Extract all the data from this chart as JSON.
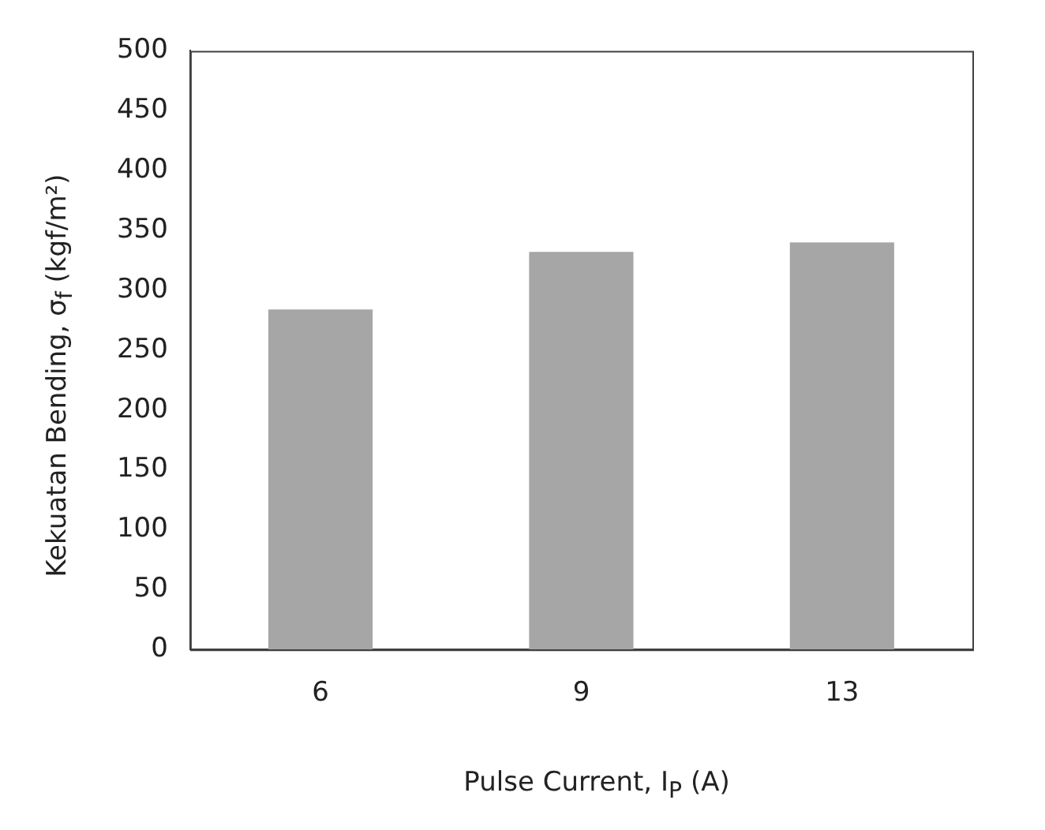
{
  "chart_data": {
    "type": "bar",
    "xlabel": "Pulse Current, I$_{P}$ (A)",
    "ylabel": "Kekuatan Bending, σ$_{f}$ (kgf/m²)",
    "categories": [
      "6",
      "9",
      "13"
    ],
    "series": [
      {
        "color": "#a6a6a6",
        "values": [
          284,
          332,
          340
        ]
      }
    ],
    "ylim": [
      0,
      500
    ],
    "yticks": [
      0,
      50,
      100,
      150,
      200,
      250,
      300,
      350,
      400,
      450,
      500
    ],
    "grid": false,
    "legend": false
  }
}
